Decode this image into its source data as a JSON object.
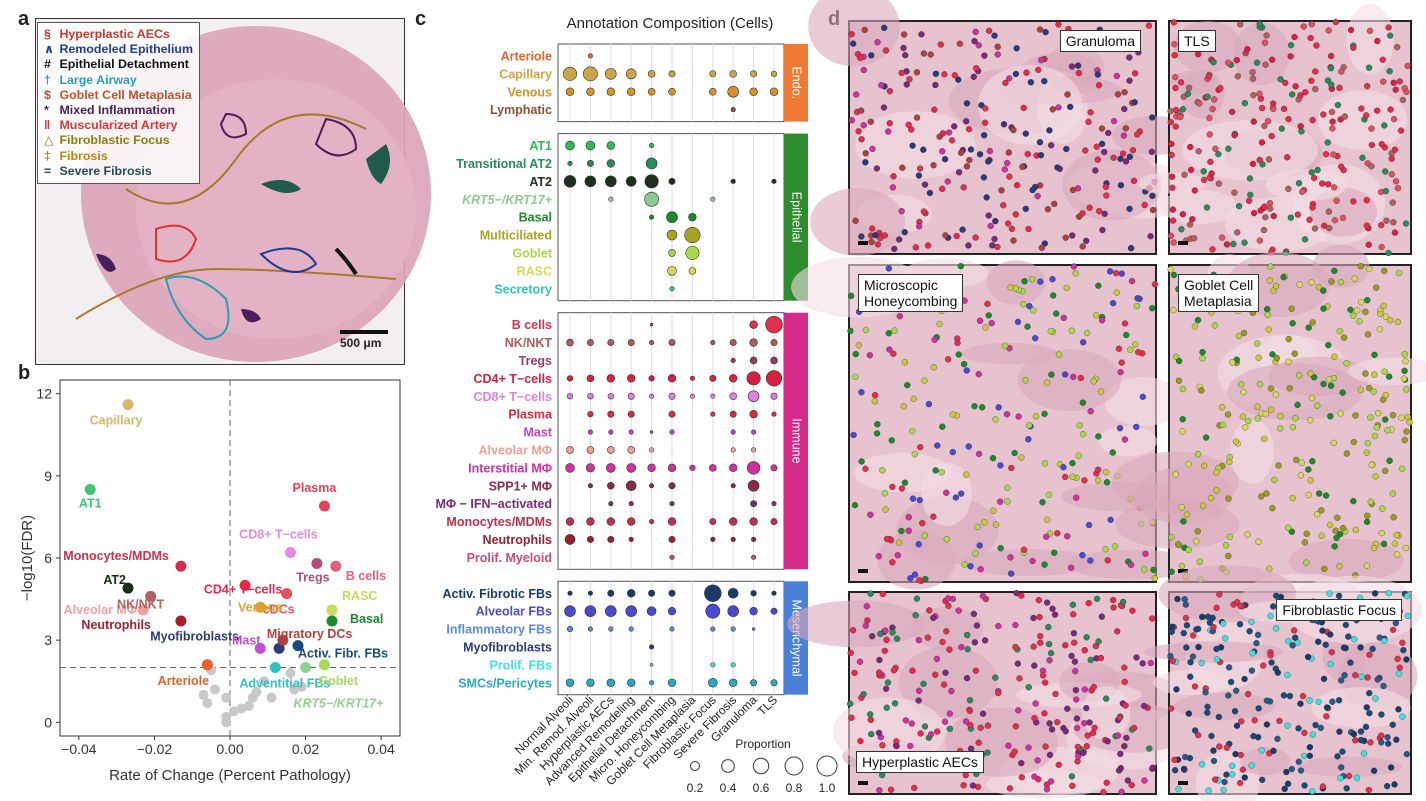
{
  "panels": {
    "a": "a",
    "b": "b",
    "c": "c",
    "d": "d"
  },
  "panel_a": {
    "legend": [
      {
        "symbol": "§",
        "label": "Hyperplastic AECs",
        "color": "#c0392b"
      },
      {
        "symbol": "∧",
        "label": "Remodeled Epithelium",
        "color": "#1f3a93"
      },
      {
        "symbol": "#",
        "label": "Epithelial Detachment",
        "color": "#111111"
      },
      {
        "symbol": "†",
        "label": "Large Airway",
        "color": "#2a9fb0"
      },
      {
        "symbol": "$",
        "label": "Goblet Cell Metaplasia",
        "color": "#c4502a"
      },
      {
        "symbol": "*",
        "label": "Mixed Inflammation",
        "color": "#4a1d5e"
      },
      {
        "symbol": "‖",
        "label": "Muscularized Artery",
        "color": "#e03030"
      },
      {
        "symbol": "△",
        "label": "Fibroblastic Focus",
        "color": "#8a7d10"
      },
      {
        "symbol": "‡",
        "label": "Fibrosis",
        "color": "#b8860b"
      },
      {
        "symbol": "=",
        "label": "Severe Fibrosis",
        "color": "#1f4d55"
      }
    ],
    "scale_label": "500 μm"
  },
  "chart_data": [
    {
      "type": "scatter",
      "panel": "b",
      "title": "",
      "xlabel": "Rate of Change (Percent Pathology)",
      "ylabel": "−log10(FDR)",
      "xlim": [
        -0.045,
        0.045
      ],
      "ylim": [
        -0.5,
        12.5
      ],
      "xticks": [
        "−0.04",
        "−0.02",
        "0.00",
        "0.02",
        "0.04"
      ],
      "xtick_values": [
        -0.04,
        -0.02,
        0,
        0.02,
        0.04
      ],
      "yticks": [
        "0",
        "3",
        "6",
        "9",
        "12"
      ],
      "ytick_values": [
        0,
        3,
        6,
        9,
        12
      ],
      "threshold_y": 2,
      "threshold_x": 0,
      "points": [
        {
          "label": "Capillary",
          "x": -0.027,
          "y": 11.6,
          "color": "#d4b86a"
        },
        {
          "label": "AT1",
          "x": -0.037,
          "y": 8.5,
          "color": "#3cc46e"
        },
        {
          "label": "Plasma",
          "x": 0.025,
          "y": 7.9,
          "color": "#e0435a"
        },
        {
          "label": "CD8+ T−cells",
          "x": 0.016,
          "y": 6.2,
          "color": "#e58ae0"
        },
        {
          "label": "Monocytes/MDMs",
          "x": -0.013,
          "y": 5.7,
          "color": "#d0304a"
        },
        {
          "label": "B cells",
          "x": 0.028,
          "y": 5.7,
          "color": "#e0607a"
        },
        {
          "label": "Tregs",
          "x": 0.023,
          "y": 5.8,
          "color": "#b0507a"
        },
        {
          "label": "CD4+ T−cells",
          "x": 0.004,
          "y": 5.0,
          "color": "#e8284a"
        },
        {
          "label": "AT2",
          "x": -0.027,
          "y": 4.9,
          "color": "#1a2a1a"
        },
        {
          "label": "cDCs",
          "x": 0.015,
          "y": 4.7,
          "color": "#e05060"
        },
        {
          "label": "Alveolar MΦ",
          "x": -0.023,
          "y": 4.1,
          "color": "#f0a0a0"
        },
        {
          "label": "NK/NKT",
          "x": -0.021,
          "y": 4.6,
          "color": "#b06060"
        },
        {
          "label": "Venous",
          "x": 0.008,
          "y": 4.2,
          "color": "#e0a030"
        },
        {
          "label": "RASC",
          "x": 0.027,
          "y": 4.1,
          "color": "#c8d860"
        },
        {
          "label": "Basal",
          "x": 0.027,
          "y": 3.7,
          "color": "#1a8a2a"
        },
        {
          "label": "Neutrophils",
          "x": -0.013,
          "y": 3.7,
          "color": "#a02030"
        },
        {
          "label": "Myofibroblasts",
          "x": 0.013,
          "y": 2.7,
          "color": "#2a3a7a"
        },
        {
          "label": "Migratory DCs",
          "x": 0.014,
          "y": 3.0,
          "color": "#b04040"
        },
        {
          "label": "Activ. Fibr. FBs",
          "x": 0.018,
          "y": 2.8,
          "color": "#1a4a7a"
        },
        {
          "label": "Mast",
          "x": 0.008,
          "y": 2.7,
          "color": "#c050d0"
        },
        {
          "label": "Arteriole",
          "x": -0.006,
          "y": 2.1,
          "color": "#e86030"
        },
        {
          "label": "Adventitial FBs",
          "x": 0.012,
          "y": 2.0,
          "color": "#30c0c0"
        },
        {
          "label": "Goblet",
          "x": 0.025,
          "y": 2.1,
          "color": "#a8d860"
        },
        {
          "label": "KRT5−/KRT17+",
          "x": 0.02,
          "y": 2.0,
          "color": "#90d090"
        }
      ],
      "minor_points": [
        {
          "x": -0.005,
          "y": 1.9
        },
        {
          "x": -0.004,
          "y": 1.2
        },
        {
          "x": -0.007,
          "y": 1.0
        },
        {
          "x": -0.006,
          "y": 0.7
        },
        {
          "x": -0.001,
          "y": 0.9
        },
        {
          "x": 0.001,
          "y": 0.4
        },
        {
          "x": -0.001,
          "y": 0.2
        },
        {
          "x": 0.003,
          "y": 0.5
        },
        {
          "x": 0.005,
          "y": 0.6
        },
        {
          "x": 0.007,
          "y": 1.1
        },
        {
          "x": 0.011,
          "y": 0.9
        },
        {
          "x": 0.017,
          "y": 1.2
        },
        {
          "x": 0.019,
          "y": 1.3
        },
        {
          "x": 0.016,
          "y": 1.8
        },
        {
          "x": -0.001,
          "y": 0.0
        },
        {
          "x": 0.009,
          "y": 1.5
        },
        {
          "x": 0.006,
          "y": 0.9
        }
      ]
    },
    {
      "type": "scatter",
      "panel": "c",
      "title": "Annotation Composition (Cells)",
      "legend_title": "Proportion",
      "legend_values": [
        "0.2",
        "0.4",
        "0.6",
        "0.8",
        "1.0"
      ],
      "columns": [
        "Normal Alveoli",
        "Min. Remod. Alveoli",
        "Hyperplastic AECs",
        "Advanced Remodeling",
        "Epithelial Detachment",
        "Micro. Honeycombing",
        "Goblet Cell Metaplasia",
        "Fibroblastic Focus",
        "Severe Fibrosis",
        "Granuloma",
        "TLS"
      ],
      "groups": [
        {
          "name": "Endo.",
          "color": "#ee7a35",
          "rows": [
            {
              "label": "Arteriole",
              "color": "#e8642a",
              "values": [
                0,
                0.05,
                0,
                0,
                0,
                0,
                0,
                0,
                0,
                0,
                0
              ]
            },
            {
              "label": "Capillary",
              "color": "#c9a64a",
              "values": [
                0.45,
                0.5,
                0.3,
                0.25,
                0.12,
                0.1,
                0,
                0.1,
                0.12,
                0.1,
                0.08
              ]
            },
            {
              "label": "Venous",
              "color": "#d9922a",
              "values": [
                0.15,
                0.15,
                0.15,
                0.15,
                0.12,
                0.12,
                0,
                0.12,
                0.3,
                0.15,
                0.15
              ]
            },
            {
              "label": "Lymphatic",
              "color": "#8a5030",
              "values": [
                0,
                0,
                0,
                0,
                0,
                0,
                0,
                0,
                0.05,
                0,
                0
              ]
            }
          ]
        },
        {
          "name": "Epithelial",
          "color": "#2e8b2e",
          "rows": [
            {
              "label": "AT1",
              "color": "#2fb858",
              "values": [
                0.2,
                0.2,
                0.15,
                0,
                0.05,
                0,
                0,
                0,
                0,
                0,
                0
              ]
            },
            {
              "label": "Transitional AT2",
              "color": "#2a8a5a",
              "values": [
                0.05,
                0.1,
                0.15,
                0,
                0.3,
                0,
                0,
                0,
                0,
                0,
                0
              ]
            },
            {
              "label": "AT2",
              "color": "#1f2f1f",
              "values": [
                0.35,
                0.3,
                0.3,
                0.25,
                0.45,
                0.1,
                0,
                0,
                0.05,
                0,
                0.05
              ]
            },
            {
              "label": "KRT5−/KRT17+",
              "color": "#8ec98e",
              "italic": true,
              "values": [
                0,
                0,
                0.05,
                0,
                0.5,
                0,
                0,
                0.05,
                0,
                0,
                0
              ]
            },
            {
              "label": "Basal",
              "color": "#1a8a2a",
              "values": [
                0,
                0,
                0,
                0,
                0.05,
                0.3,
                0.15,
                0,
                0,
                0,
                0
              ]
            },
            {
              "label": "Multiciliated",
              "color": "#a9a21e",
              "values": [
                0,
                0,
                0,
                0,
                0,
                0.25,
                0.6,
                0,
                0,
                0,
                0
              ]
            },
            {
              "label": "Goblet",
              "color": "#a8d848",
              "values": [
                0,
                0,
                0,
                0,
                0,
                0.12,
                0.45,
                0,
                0,
                0,
                0
              ]
            },
            {
              "label": "RASC",
              "color": "#d7d75a",
              "values": [
                0,
                0,
                0,
                0,
                0,
                0.2,
                0.12,
                0,
                0,
                0,
                0
              ]
            },
            {
              "label": "Secretory",
              "color": "#2ec8a8",
              "values": [
                0,
                0,
                0,
                0,
                0,
                0.05,
                0,
                0,
                0,
                0,
                0
              ]
            }
          ]
        },
        {
          "name": "Immune",
          "color": "#d42b8a",
          "rows": [
            {
              "label": "B cells",
              "color": "#e0304a",
              "values": [
                0,
                0,
                0,
                0,
                0.02,
                0,
                0,
                0,
                0,
                0.15,
                0.7
              ]
            },
            {
              "label": "NK/NKT",
              "color": "#b05a5a",
              "values": [
                0.12,
                0.1,
                0.1,
                0.1,
                0.05,
                0.1,
                0,
                0.05,
                0.1,
                0.15,
                0.1
              ]
            },
            {
              "label": "Tregs",
              "color": "#9a3a6a",
              "values": [
                0,
                0,
                0,
                0,
                0,
                0,
                0,
                0,
                0.05,
                0.12,
                0.12
              ]
            },
            {
              "label": "CD4+ T−cells",
              "color": "#d82040",
              "values": [
                0.08,
                0.12,
                0.15,
                0.15,
                0.08,
                0.15,
                0.05,
                0.1,
                0.15,
                0.45,
                0.6
              ]
            },
            {
              "label": "CD8+ T−cells",
              "color": "#e280e0",
              "values": [
                0.08,
                0.08,
                0.08,
                0.1,
                0.05,
                0.1,
                0.05,
                0.05,
                0.12,
                0.3,
                0.1
              ]
            },
            {
              "label": "Plasma",
              "color": "#e02a3a",
              "values": [
                0,
                0.08,
                0.1,
                0.1,
                0,
                0.1,
                0,
                0.05,
                0.1,
                0.15,
                0.05
              ]
            },
            {
              "label": "Mast",
              "color": "#c040d0",
              "values": [
                0,
                0.05,
                0.05,
                0.05,
                0.02,
                0.05,
                0,
                0,
                0.05,
                0.05,
                0
              ]
            },
            {
              "label": "Alveolar MΦ",
              "color": "#f0a098",
              "values": [
                0.12,
                0.12,
                0.12,
                0.12,
                0.05,
                0,
                0,
                0,
                0.05,
                0.05,
                0
              ]
            },
            {
              "label": "Interstitial MΦ",
              "color": "#d030a0",
              "values": [
                0.2,
                0.18,
                0.2,
                0.2,
                0.15,
                0.15,
                0.08,
                0.12,
                0.15,
                0.4,
                0.1
              ]
            },
            {
              "label": "SPP1+ MΦ",
              "color": "#8a2a4a",
              "italic_prefix": "SPP1",
              "values": [
                0,
                0.05,
                0.12,
                0.25,
                0.05,
                0.1,
                0,
                0,
                0.05,
                0.3,
                0
              ]
            },
            {
              "label": "MΦ − IFN−activated",
              "color": "#7a2a7a",
              "values": [
                0,
                0,
                0.05,
                0.05,
                0,
                0.05,
                0,
                0,
                0,
                0.1,
                0.05
              ]
            },
            {
              "label": "Monocytes/MDMs",
              "color": "#c0304a",
              "values": [
                0.15,
                0.15,
                0.15,
                0.15,
                0.05,
                0.15,
                0,
                0.1,
                0.15,
                0.15,
                0.1
              ]
            },
            {
              "label": "Neutrophils",
              "color": "#9a2030",
              "values": [
                0.25,
                0.1,
                0.1,
                0.05,
                0,
                0.1,
                0,
                0.05,
                0.05,
                0.05,
                0
              ]
            },
            {
              "label": "Prolif. Myeloid",
              "color": "#c84a7a",
              "values": [
                0,
                0,
                0,
                0,
                0,
                0.05,
                0,
                0,
                0,
                0.05,
                0
              ]
            }
          ]
        },
        {
          "name": "Mesenchymal",
          "color": "#4a80d8",
          "rows": [
            {
              "label": "Activ. Fibrotic FBs",
              "color": "#1a3a6a",
              "values": [
                0.05,
                0.05,
                0.1,
                0.15,
                0.1,
                0.1,
                0,
                0.7,
                0.25,
                0.08,
                0.05
              ]
            },
            {
              "label": "Alveolar FBs",
              "color": "#4a4ad0",
              "values": [
                0.3,
                0.3,
                0.3,
                0.3,
                0.2,
                0.15,
                0,
                0.5,
                0.3,
                0.15,
                0.1
              ]
            },
            {
              "label": "Inflammatory FBs",
              "color": "#5a8ad8",
              "values": [
                0.08,
                0.05,
                0.05,
                0.05,
                0,
                0.05,
                0,
                0.05,
                0.05,
                0.02,
                0
              ]
            },
            {
              "label": "Myofibroblasts",
              "color": "#2a3a7a",
              "values": [
                0,
                0,
                0,
                0,
                0.05,
                0,
                0,
                0,
                0,
                0,
                0
              ]
            },
            {
              "label": "Prolif. FBs",
              "color": "#40e0e0",
              "values": [
                0,
                0,
                0,
                0,
                0.02,
                0,
                0,
                0.05,
                0.05,
                0,
                0
              ]
            },
            {
              "label": "SMCs/Pericytes",
              "color": "#2aa8c0",
              "values": [
                0.15,
                0.15,
                0.15,
                0.15,
                0.05,
                0.15,
                0,
                0.2,
                0.15,
                0.1,
                0.1
              ]
            }
          ]
        }
      ]
    }
  ],
  "panel_d": {
    "tiles": [
      "Granuloma",
      "TLS",
      "Microscopic Honeycombing",
      "Goblet Cell Metaplasia",
      "Hyperplastic AECs",
      "Fibroblastic Focus"
    ],
    "tile_labels": [
      [
        "Granuloma"
      ],
      [
        "TLS"
      ],
      [
        "Microscopic",
        "Honeycombing"
      ],
      [
        "Goblet Cell",
        "Metaplasia"
      ],
      [
        "Hyperplastic AECs"
      ],
      [
        "Fibroblastic Focus"
      ]
    ]
  }
}
